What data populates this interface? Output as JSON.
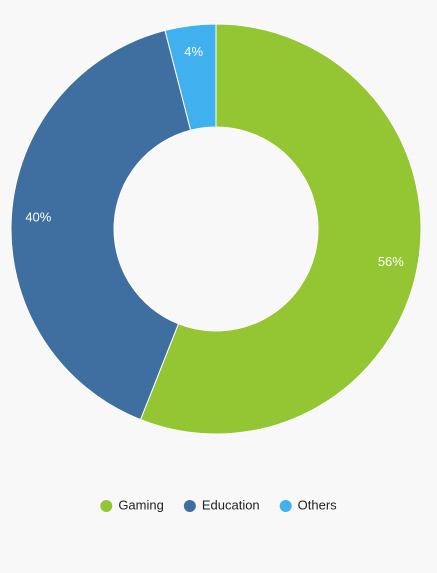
{
  "chart_data": {
    "type": "donut",
    "categories": [
      "Gaming",
      "Education",
      "Others"
    ],
    "values": [
      56,
      40,
      4
    ],
    "value_labels": [
      "56%",
      "40%",
      "4%"
    ],
    "colors": [
      "#93c632",
      "#3f6ea0",
      "#41b0ee"
    ],
    "legend": "bottom"
  }
}
